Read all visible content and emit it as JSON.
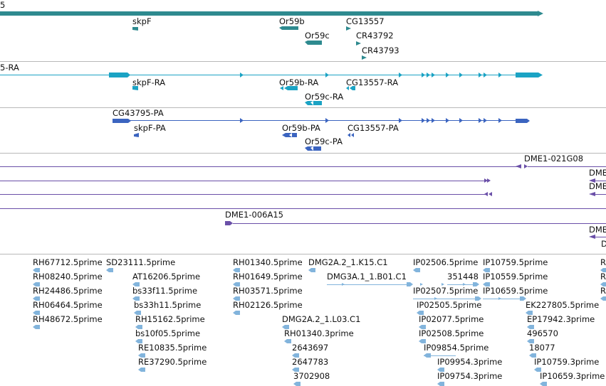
{
  "colors": {
    "gene": "#2e8a8f",
    "transcript": "#1ba3c4",
    "protein": "#3b64c0",
    "clone": "#6a4fa8",
    "est": "#82b4dc",
    "separator": "#b8b8b8"
  },
  "gene_track": {
    "top_label": "5",
    "features": [
      "skpF",
      "Or59b",
      "Or59c",
      "CG13557",
      "CR43792",
      "CR43793"
    ]
  },
  "transcript_track": {
    "top_label": "5-RA",
    "features": [
      "skpF-RA",
      "Or59b-RA",
      "Or59c-RA",
      "CG13557-RA"
    ]
  },
  "protein_track": {
    "features": [
      "CG43795-PA",
      "skpF-PA",
      "Or59b-PA",
      "CG13557-PA",
      "Or59c-PA"
    ]
  },
  "clone_track": {
    "features": [
      "DME1-021G08",
      "DME",
      "DME",
      "DME1-006A15",
      "DME",
      "D"
    ]
  },
  "est_track": {
    "labels": [
      "RH67712.5prime",
      "SD23111.5prime",
      "RH08240.5prime",
      "AT16206.5prime",
      "RH24486.5prime",
      "bs33f11.5prime",
      "RH06464.5prime",
      "bs33h11.5prime",
      "RH48672.5prime",
      "RH15162.5prime",
      "bs10f05.5prime",
      "RE10835.5prime",
      "RE37290.5prime",
      "RH01340.5prime",
      "DMG2A.2_1.K15.C1",
      "RH01649.5prime",
      "DMG3A.1_1.B01.C1",
      "RH03571.5prime",
      "RH02126.5prime",
      "DMG2A.2_1.L03.C1",
      "RH01340.3prime",
      "2643697",
      "2647783",
      "3702908",
      "IP02506.5prime",
      "IP10759.5prime",
      "351448",
      "IP10559.5prime",
      "IP02507.5prime",
      "IP10659.5prime",
      "IP02505.5prime",
      "IP02077.5prime",
      "IP02508.5prime",
      "IP09854.5prime",
      "IP09954.3prime",
      "IP09754.3prime",
      "EK227805.5prime",
      "EP17942.3prime",
      "496570",
      "18077",
      "IP10759.3prime",
      "IP10659.3prime",
      "R",
      "R",
      "R"
    ]
  }
}
